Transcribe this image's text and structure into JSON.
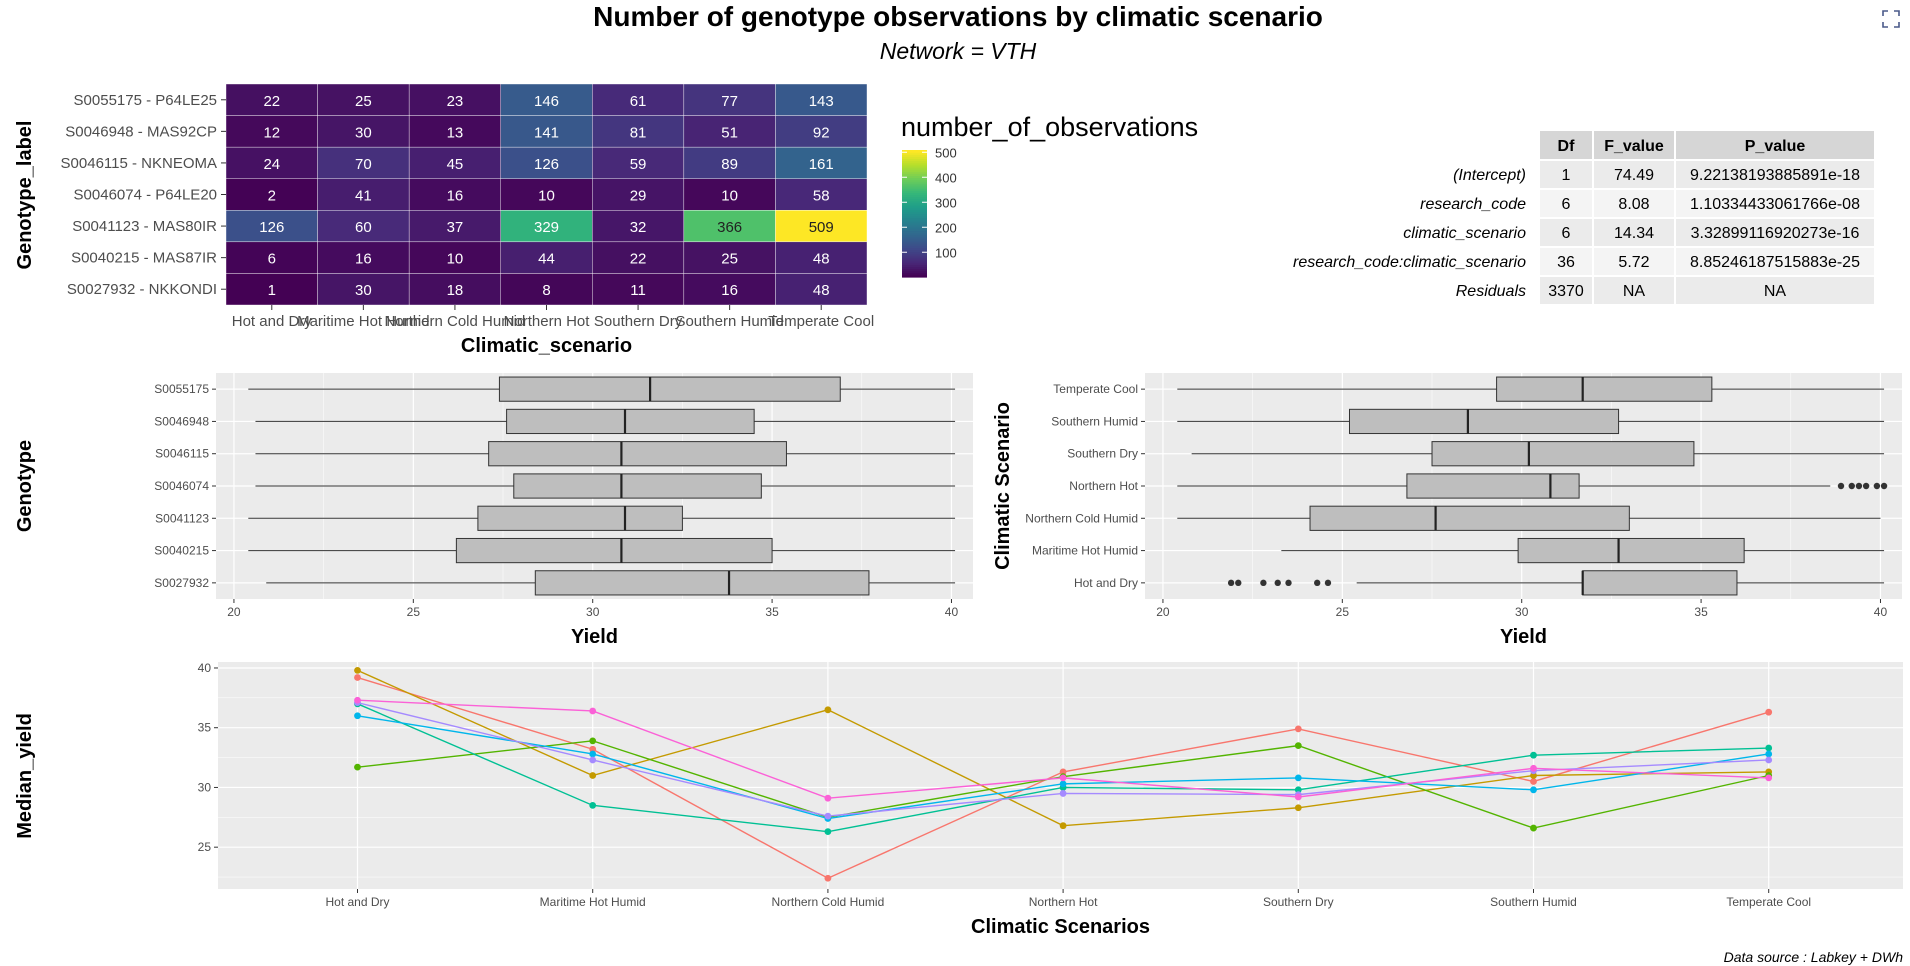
{
  "title": "Number of genotype observations by climatic scenario",
  "subtitle": "Network = VTH",
  "caption": "Data source : Labkey + DWh",
  "expand_icon": "expand-icon",
  "heatmap": {
    "xlabel": "Climatic_scenario",
    "ylabel": "Genotype_label",
    "legend_title": "number_of_observations",
    "legend_ticks": [
      100,
      200,
      300,
      400,
      500
    ],
    "scale_range": [
      1,
      509
    ],
    "columns": [
      "Hot and Dry",
      "Maritime Hot Humid",
      "Northern Cold Humid",
      "Northern Hot",
      "Southern Dry",
      "Southern Humid",
      "Temperate Cool"
    ],
    "rows": [
      "S0055175 - P64LE25",
      "S0046948 - MAS92CP",
      "S0046115 - NKNEOMA",
      "S0046074 - P64LE20",
      "S0041123 - MAS80IR",
      "S0040215 - MAS87IR",
      "S0027932 - NKKONDI"
    ],
    "values": [
      [
        22,
        25,
        23,
        146,
        61,
        77,
        143
      ],
      [
        12,
        30,
        13,
        141,
        81,
        51,
        92
      ],
      [
        24,
        70,
        45,
        126,
        59,
        89,
        161
      ],
      [
        2,
        41,
        16,
        10,
        29,
        10,
        58
      ],
      [
        126,
        60,
        37,
        329,
        32,
        366,
        509
      ],
      [
        6,
        16,
        10,
        44,
        22,
        25,
        48
      ],
      [
        1,
        30,
        18,
        8,
        11,
        16,
        48
      ]
    ]
  },
  "anova": {
    "headers": [
      "Df",
      "F_value",
      "P_value"
    ],
    "rows": [
      {
        "term": "(Intercept)",
        "df": "1",
        "f": "74.49",
        "p": "9.22138193885891e-18"
      },
      {
        "term": "research_code",
        "df": "6",
        "f": "8.08",
        "p": "1.10334433061766e-08"
      },
      {
        "term": "climatic_scenario",
        "df": "6",
        "f": "14.34",
        "p": "3.32899116920273e-16"
      },
      {
        "term": "research_code:climatic_scenario",
        "df": "36",
        "f": "5.72",
        "p": "8.85246187515883e-25"
      },
      {
        "term": "Residuals",
        "df": "3370",
        "f": "NA",
        "p": "NA"
      }
    ]
  },
  "chart_data": [
    {
      "type": "heatmap",
      "title": "Number of genotype observations by climatic scenario",
      "subtitle": "Network = VTH",
      "xlabel": "Climatic_scenario",
      "ylabel": "Genotype_label",
      "legend": "number_of_observations"
    },
    {
      "type": "box",
      "xlabel": "Yield",
      "ylabel": "Genotype",
      "xlim": [
        19.5,
        40.6
      ],
      "xticks": [
        20,
        25,
        30,
        35,
        40
      ],
      "categories": [
        "S0055175",
        "S0046948",
        "S0046115",
        "S0046074",
        "S0041123",
        "S0040215",
        "S0027932"
      ],
      "boxes": [
        {
          "min": 20.4,
          "q1": 27.4,
          "median": 31.6,
          "q3": 36.9,
          "max": 40.1
        },
        {
          "min": 20.6,
          "q1": 27.6,
          "median": 30.9,
          "q3": 34.5,
          "max": 40.1
        },
        {
          "min": 20.6,
          "q1": 27.1,
          "median": 30.8,
          "q3": 35.4,
          "max": 40.1
        },
        {
          "min": 20.6,
          "q1": 27.8,
          "median": 30.8,
          "q3": 34.7,
          "max": 40.1
        },
        {
          "min": 20.4,
          "q1": 26.8,
          "median": 30.9,
          "q3": 32.5,
          "max": 40.1
        },
        {
          "min": 20.4,
          "q1": 26.2,
          "median": 30.8,
          "q3": 35.0,
          "max": 40.1
        },
        {
          "min": 20.9,
          "q1": 28.4,
          "median": 33.8,
          "q3": 37.7,
          "max": 40.1
        }
      ]
    },
    {
      "type": "box",
      "xlabel": "Yield",
      "ylabel": "Climatic Scenario",
      "xlim": [
        19.5,
        40.6
      ],
      "xticks": [
        20,
        25,
        30,
        35,
        40
      ],
      "categories": [
        "Temperate Cool",
        "Southern Humid",
        "Southern Dry",
        "Northern Hot",
        "Northern Cold Humid",
        "Maritime Hot Humid",
        "Hot and Dry"
      ],
      "boxes": [
        {
          "min": 20.4,
          "q1": 29.3,
          "median": 31.7,
          "q3": 35.3,
          "max": 40.1,
          "outliers": []
        },
        {
          "min": 20.4,
          "q1": 25.2,
          "median": 28.5,
          "q3": 32.7,
          "max": 40.1,
          "outliers": []
        },
        {
          "min": 20.8,
          "q1": 27.5,
          "median": 30.2,
          "q3": 34.8,
          "max": 40.1,
          "outliers": []
        },
        {
          "min": 20.4,
          "q1": 26.8,
          "median": 30.8,
          "q3": 31.6,
          "max": 38.6,
          "outliers": [
            38.9,
            39.2,
            39.4,
            39.6,
            39.9,
            40.1
          ]
        },
        {
          "min": 20.4,
          "q1": 24.1,
          "median": 27.6,
          "q3": 33.0,
          "max": 40.0,
          "outliers": []
        },
        {
          "min": 23.3,
          "q1": 29.9,
          "median": 32.7,
          "q3": 36.2,
          "max": 40.1,
          "outliers": []
        },
        {
          "min": 25.4,
          "q1": 31.7,
          "median": 31.7,
          "q3": 36.0,
          "max": 40.1,
          "outliers": [
            21.9,
            22.1,
            22.8,
            23.2,
            23.5,
            24.3,
            24.6
          ]
        }
      ]
    },
    {
      "type": "line",
      "xlabel": "Climatic Scenarios",
      "ylabel": "Median_yield",
      "ylim": [
        21.5,
        40.5
      ],
      "yticks": [
        25,
        30,
        35,
        40
      ],
      "categories": [
        "Hot and Dry",
        "Maritime Hot Humid",
        "Northern Cold Humid",
        "Northern Hot",
        "Southern Dry",
        "Southern Humid",
        "Temperate Cool"
      ],
      "series": [
        {
          "color": "#F8766D",
          "values": [
            39.2,
            33.2,
            22.4,
            31.3,
            34.9,
            30.5,
            36.3
          ]
        },
        {
          "color": "#C49A00",
          "values": [
            39.8,
            31.0,
            36.5,
            26.8,
            28.3,
            31.0,
            31.3
          ]
        },
        {
          "color": "#53B400",
          "values": [
            31.7,
            33.9,
            27.5,
            30.9,
            33.5,
            26.6,
            31.0
          ]
        },
        {
          "color": "#00C094",
          "values": [
            37.0,
            28.5,
            26.3,
            30.0,
            29.8,
            32.7,
            33.3
          ]
        },
        {
          "color": "#00B6EB",
          "values": [
            36.0,
            32.8,
            27.4,
            30.3,
            30.8,
            29.8,
            32.8
          ]
        },
        {
          "color": "#A58AFF",
          "values": [
            37.1,
            32.3,
            27.6,
            29.5,
            29.4,
            31.4,
            32.3
          ]
        },
        {
          "color": "#FB61D7",
          "values": [
            37.3,
            36.4,
            29.1,
            30.8,
            29.2,
            31.6,
            30.8
          ]
        }
      ]
    }
  ]
}
